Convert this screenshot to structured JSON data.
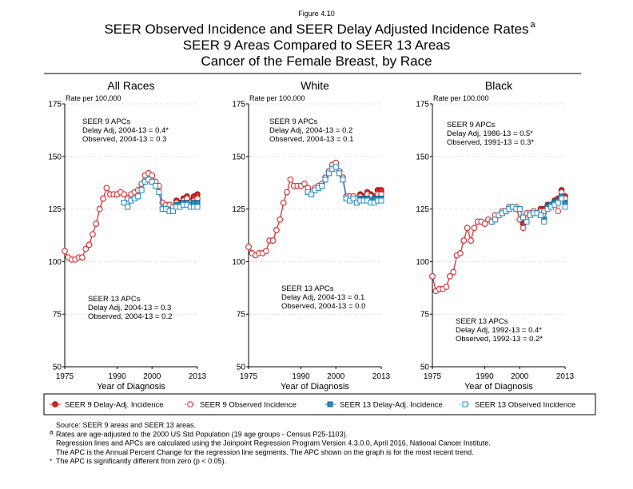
{
  "figure_label": "Figure 4.10",
  "title": {
    "lines": [
      "SEER Observed Incidence and SEER Delay Adjusted Incidence Rates",
      "SEER 9 Areas Compared to SEER 13 Areas",
      "Cancer of the Female Breast, by Race"
    ],
    "superscript": "a"
  },
  "chart_data": [
    {
      "type": "line",
      "title": "All Races",
      "y_label": "Rate per 100,000",
      "x_label": "Year of Diagnosis",
      "xlim": [
        1975,
        2013
      ],
      "xticks": [
        1975,
        1990,
        2000,
        2013
      ],
      "ylim": [
        50,
        175
      ],
      "yticks": [
        50,
        75,
        100,
        125,
        150,
        175
      ],
      "grid": true,
      "x": [
        1975,
        1976,
        1977,
        1978,
        1979,
        1980,
        1981,
        1982,
        1983,
        1984,
        1985,
        1986,
        1987,
        1988,
        1989,
        1990,
        1991,
        1992,
        1993,
        1994,
        1995,
        1996,
        1997,
        1998,
        1999,
        2000,
        2001,
        2002,
        2003,
        2004,
        2005,
        2006,
        2007,
        2008,
        2009,
        2010,
        2011,
        2012,
        2013
      ],
      "series": [
        {
          "name": "SEER 9 Delay-Adj. Incidence",
          "color": "#e0262a",
          "marker": "circle",
          "filled": true,
          "line": "solid",
          "values": [
            105,
            102,
            101,
            101,
            102,
            102,
            106,
            108,
            113,
            118,
            125,
            130,
            135,
            132,
            132,
            132,
            133,
            132,
            130,
            132,
            133,
            134,
            137,
            141,
            142,
            141,
            138,
            136,
            128,
            127,
            127,
            126,
            129,
            128,
            130,
            131,
            129,
            131,
            132
          ]
        },
        {
          "name": "SEER 9 Observed Incidence",
          "color": "#e0262a",
          "marker": "circle",
          "filled": false,
          "line": "dotted",
          "values": [
            105,
            102,
            101,
            101,
            102,
            102,
            106,
            108,
            113,
            118,
            125,
            130,
            135,
            132,
            132,
            132,
            133,
            132,
            130,
            132,
            133,
            134,
            137,
            141,
            142,
            141,
            138,
            136,
            128,
            127,
            127,
            126,
            128,
            127,
            129,
            130,
            128,
            129,
            130
          ]
        },
        {
          "name": "SEER 13 Delay-Adj. Incidence",
          "color": "#2b8cc4",
          "marker": "square",
          "filled": true,
          "line": "solid",
          "values": [
            null,
            null,
            null,
            null,
            null,
            null,
            null,
            null,
            null,
            null,
            null,
            null,
            null,
            null,
            null,
            null,
            null,
            128,
            126,
            129,
            130,
            131,
            134,
            138,
            139,
            138,
            136,
            133,
            125,
            125,
            124,
            124,
            127,
            127,
            128,
            128,
            127,
            128,
            128
          ]
        },
        {
          "name": "SEER 13 Observed Incidence",
          "color": "#2b8cc4",
          "marker": "square",
          "filled": false,
          "line": "dotted",
          "values": [
            null,
            null,
            null,
            null,
            null,
            null,
            null,
            null,
            null,
            null,
            null,
            null,
            null,
            null,
            null,
            null,
            null,
            128,
            126,
            129,
            130,
            131,
            134,
            138,
            139,
            138,
            136,
            133,
            125,
            125,
            124,
            124,
            126,
            126,
            127,
            127,
            126,
            126,
            126
          ]
        }
      ],
      "annotations": [
        {
          "color": "#e0262a",
          "lines": [
            "SEER 9 APCs",
            "Delay Adj, 2004-13 = 0.4*",
            "Observed, 2004-13 = 0.3"
          ]
        },
        {
          "color": "#2b8cc4",
          "lines": [
            "SEER 13 APCs",
            "Delay Adj, 2004-13 = 0.3",
            "Observed, 2004-13 = 0.2"
          ]
        }
      ]
    },
    {
      "type": "line",
      "title": "White",
      "y_label": "Rate per 100,000",
      "x_label": "Year of Diagnosis",
      "xlim": [
        1975,
        2013
      ],
      "xticks": [
        1975,
        1990,
        2000,
        2013
      ],
      "ylim": [
        50,
        175
      ],
      "yticks": [
        50,
        75,
        100,
        125,
        150,
        175
      ],
      "grid": true,
      "x": [
        1975,
        1976,
        1977,
        1978,
        1979,
        1980,
        1981,
        1982,
        1983,
        1984,
        1985,
        1986,
        1987,
        1988,
        1989,
        1990,
        1991,
        1992,
        1993,
        1994,
        1995,
        1996,
        1997,
        1998,
        1999,
        2000,
        2001,
        2002,
        2003,
        2004,
        2005,
        2006,
        2007,
        2008,
        2009,
        2010,
        2011,
        2012,
        2013
      ],
      "series": [
        {
          "name": "SEER 9 Delay-Adj. Incidence",
          "color": "#e0262a",
          "marker": "circle",
          "filled": true,
          "line": "solid",
          "values": [
            107,
            104,
            103,
            104,
            104,
            105,
            110,
            110,
            115,
            120,
            128,
            133,
            139,
            136,
            136,
            136,
            137,
            135,
            133,
            135,
            136,
            137,
            140,
            143,
            146,
            147,
            143,
            140,
            131,
            131,
            131,
            130,
            132,
            131,
            133,
            132,
            131,
            134,
            134
          ]
        },
        {
          "name": "SEER 9 Observed Incidence",
          "color": "#e0262a",
          "marker": "circle",
          "filled": false,
          "line": "dotted",
          "values": [
            107,
            104,
            103,
            104,
            104,
            105,
            110,
            110,
            115,
            120,
            128,
            133,
            139,
            136,
            136,
            136,
            137,
            135,
            133,
            135,
            136,
            137,
            140,
            143,
            146,
            147,
            143,
            140,
            131,
            131,
            131,
            130,
            131,
            130,
            132,
            131,
            130,
            132,
            132
          ]
        },
        {
          "name": "SEER 13 Delay-Adj. Incidence",
          "color": "#2b8cc4",
          "marker": "square",
          "filled": true,
          "line": "solid",
          "values": [
            null,
            null,
            null,
            null,
            null,
            null,
            null,
            null,
            null,
            null,
            null,
            null,
            null,
            null,
            null,
            null,
            null,
            133,
            132,
            134,
            135,
            136,
            139,
            142,
            144,
            145,
            142,
            139,
            130,
            129,
            130,
            128,
            130,
            130,
            130,
            129,
            130,
            130,
            130
          ]
        },
        {
          "name": "SEER 13 Observed Incidence",
          "color": "#2b8cc4",
          "marker": "square",
          "filled": false,
          "line": "dotted",
          "values": [
            null,
            null,
            null,
            null,
            null,
            null,
            null,
            null,
            null,
            null,
            null,
            null,
            null,
            null,
            null,
            null,
            null,
            133,
            132,
            134,
            135,
            136,
            139,
            142,
            144,
            145,
            142,
            139,
            130,
            129,
            130,
            128,
            129,
            129,
            129,
            128,
            128,
            129,
            129
          ]
        }
      ],
      "annotations": [
        {
          "color": "#e0262a",
          "lines": [
            "SEER 9 APCs",
            "Delay Adj, 2004-13 = 0.2",
            "Observed, 2004-13 = 0.1"
          ]
        },
        {
          "color": "#2b8cc4",
          "lines": [
            "SEER 13 APCs",
            "Delay Adj, 2004-13 = 0.1",
            "Observed, 2004-13 = 0.0"
          ]
        }
      ]
    },
    {
      "type": "line",
      "title": "Black",
      "y_label": "Rate per 100,000",
      "x_label": "Year of Diagnosis",
      "xlim": [
        1975,
        2013
      ],
      "xticks": [
        1975,
        1990,
        2000,
        2013
      ],
      "ylim": [
        50,
        175
      ],
      "yticks": [
        50,
        75,
        100,
        125,
        150,
        175
      ],
      "grid": true,
      "x": [
        1975,
        1976,
        1977,
        1978,
        1979,
        1980,
        1981,
        1982,
        1983,
        1984,
        1985,
        1986,
        1987,
        1988,
        1989,
        1990,
        1991,
        1992,
        1993,
        1994,
        1995,
        1996,
        1997,
        1998,
        1999,
        2000,
        2001,
        2002,
        2003,
        2004,
        2005,
        2006,
        2007,
        2008,
        2009,
        2010,
        2011,
        2012,
        2013
      ],
      "series": [
        {
          "name": "SEER 9 Delay-Adj. Incidence",
          "color": "#e0262a",
          "marker": "circle",
          "filled": true,
          "line": "solid",
          "values": [
            93,
            86,
            87,
            87,
            88,
            93,
            95,
            103,
            104,
            110,
            116,
            110,
            116,
            119,
            119,
            118,
            120,
            119,
            122,
            122,
            124,
            124,
            126,
            126,
            126,
            120,
            118,
            123,
            123,
            124,
            123,
            125,
            125,
            127,
            127,
            129,
            130,
            134,
            131
          ]
        },
        {
          "name": "SEER 9 Observed Incidence",
          "color": "#e0262a",
          "marker": "circle",
          "filled": false,
          "line": "dotted",
          "values": [
            93,
            86,
            87,
            87,
            88,
            93,
            95,
            103,
            104,
            110,
            116,
            110,
            116,
            119,
            119,
            118,
            120,
            119,
            122,
            122,
            124,
            124,
            126,
            126,
            126,
            120,
            116,
            123,
            123,
            124,
            123,
            124,
            124,
            126,
            126,
            128,
            124,
            133,
            130
          ]
        },
        {
          "name": "SEER 13 Delay-Adj. Incidence",
          "color": "#2b8cc4",
          "marker": "square",
          "filled": true,
          "line": "solid",
          "values": [
            null,
            null,
            null,
            null,
            null,
            null,
            null,
            null,
            null,
            null,
            null,
            null,
            null,
            null,
            null,
            null,
            null,
            119,
            120,
            122,
            123,
            124,
            125,
            126,
            125,
            125,
            121,
            119,
            122,
            123,
            123,
            122,
            120,
            126,
            127,
            128,
            129,
            131,
            128
          ]
        },
        {
          "name": "SEER 13 Observed Incidence",
          "color": "#2b8cc4",
          "marker": "square",
          "filled": false,
          "line": "dotted",
          "values": [
            null,
            null,
            null,
            null,
            null,
            null,
            null,
            null,
            null,
            null,
            null,
            null,
            null,
            null,
            null,
            null,
            null,
            119,
            120,
            122,
            123,
            124,
            125,
            126,
            125,
            125,
            121,
            119,
            122,
            123,
            123,
            122,
            119,
            125,
            126,
            127,
            128,
            130,
            126
          ]
        }
      ],
      "annotations": [
        {
          "color": "#e0262a",
          "lines": [
            "SEER 9 APCs",
            "Delay Adj, 1986-13 = 0.5*",
            "Observed, 1991-13 = 0.3*"
          ]
        },
        {
          "color": "#2b8cc4",
          "lines": [
            "SEER 13 APCs",
            "Delay Adj, 1992-13 = 0.4*",
            "Observed, 1992-13 = 0.2*"
          ]
        }
      ]
    }
  ],
  "footnotes": [
    {
      "text": "Source: SEER 9 areas and SEER 13 areas."
    },
    {
      "mark": "a",
      "text": "Rates are age-adjusted to the 2000 US Std Population (19 age groups - Census P25-1103)."
    },
    {
      "text": "Regression lines and APCs are calculated using the Joinpoint Regression Program Version 4.3.0.0, April 2016, National Cancer Institute."
    },
    {
      "text": "The APC is the Annual Percent Change for the regression line segments. The APC shown on the graph is for the most recent trend."
    },
    {
      "mark": "*",
      "text": "The APC is significantly different from zero (p < 0.05)."
    }
  ]
}
